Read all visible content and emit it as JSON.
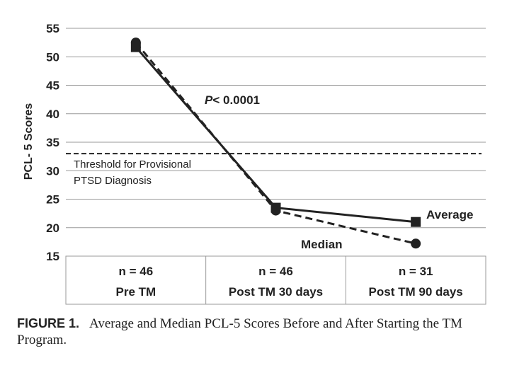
{
  "chart_data": {
    "type": "line",
    "ylabel": "PCL- 5 Scores",
    "ylim": [
      15,
      55
    ],
    "yticks": [
      15,
      20,
      25,
      30,
      35,
      40,
      45,
      50,
      55
    ],
    "grid": true,
    "categories": [
      {
        "n": "n = 46",
        "label": "Pre TM"
      },
      {
        "n": "n = 46",
        "label": "Post TM 30 days"
      },
      {
        "n": "n = 31",
        "label": "Post TM 90 days"
      }
    ],
    "series": [
      {
        "name": "Average",
        "marker": "square",
        "line_style": "solid",
        "values": [
          51.7,
          23.5,
          21.0
        ]
      },
      {
        "name": "Median",
        "marker": "circle",
        "line_style": "dashed",
        "values": [
          52.5,
          23.0,
          17.2
        ]
      }
    ],
    "threshold": {
      "value": 33,
      "label_line1": "Threshold for Provisional",
      "label_line2": "PTSD Diagnosis"
    },
    "annotation": {
      "p_italic": "P",
      "p_rest": "< 0.0001"
    }
  },
  "caption": {
    "figure_label": "FIGURE 1.",
    "text": "Average and Median PCL-5 Scores Before and After Starting the TM Program."
  }
}
